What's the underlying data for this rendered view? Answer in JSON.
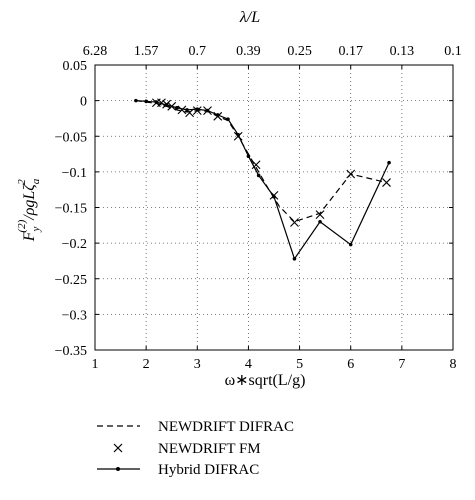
{
  "chart_data": {
    "type": "line",
    "xlabel": "ω∗sqrt(L/g)",
    "ylabel_main": "F",
    "ylabel_sub": "y",
    "ylabel_sup": "(2)",
    "ylabel_denom": "/ρgLζ",
    "ylabel_denom_sub": "a",
    "ylabel_denom_sup": "2",
    "top_axis_label": "λ/L",
    "xlim": [
      1,
      8
    ],
    "ylim": [
      -0.35,
      0.05
    ],
    "x_ticks": [
      1,
      2,
      3,
      4,
      5,
      6,
      7,
      8
    ],
    "y_ticks": [
      0.05,
      0,
      -0.05,
      -0.1,
      -0.15,
      -0.2,
      -0.25,
      -0.3,
      -0.35
    ],
    "y_tick_labels": [
      "0.05",
      "0",
      "−0.05",
      "−0.1",
      "−0.15",
      "−0.2",
      "−0.25",
      "−0.3",
      "−0.35"
    ],
    "top_ticks": [
      {
        "x": 1.0,
        "label": "6.28"
      },
      {
        "x": 2.0,
        "label": "1.57"
      },
      {
        "x": 3.0,
        "label": "0.7"
      },
      {
        "x": 4.0,
        "label": "0.39"
      },
      {
        "x": 5.0,
        "label": "0.25"
      },
      {
        "x": 6.0,
        "label": "0.17"
      },
      {
        "x": 7.0,
        "label": "0.13"
      },
      {
        "x": 8.0,
        "label": "0.1"
      }
    ],
    "grid": true,
    "series": [
      {
        "name": "NEWDRIFT DIFRAC",
        "style": "dashed",
        "x": [
          1.8,
          2.0,
          2.2,
          2.4,
          2.6,
          2.8,
          3.0,
          3.2,
          3.4,
          3.6,
          3.8,
          4.0,
          4.2,
          4.4,
          4.6,
          4.9,
          5.4,
          6.0,
          6.7
        ],
        "y": [
          0.0,
          -0.002,
          -0.004,
          -0.008,
          -0.013,
          -0.016,
          -0.014,
          -0.015,
          -0.022,
          -0.028,
          -0.05,
          -0.075,
          -0.1,
          -0.125,
          -0.148,
          -0.17,
          -0.158,
          -0.103,
          -0.115
        ]
      },
      {
        "name": "NEWDRIFT FM",
        "style": "markers-x",
        "x": [
          2.2,
          2.3,
          2.4,
          2.5,
          2.7,
          2.85,
          3.0,
          3.2,
          3.4,
          3.8,
          4.15,
          4.5,
          4.9,
          5.4,
          6.0,
          6.7
        ],
        "y": [
          -0.003,
          -0.003,
          -0.005,
          -0.008,
          -0.013,
          -0.017,
          -0.014,
          -0.014,
          -0.022,
          -0.05,
          -0.09,
          -0.133,
          -0.171,
          -0.16,
          -0.103,
          -0.115
        ]
      },
      {
        "name": "Hybrid DIFRAC",
        "style": "solid-dots",
        "x": [
          1.8,
          2.0,
          2.2,
          2.4,
          2.6,
          2.8,
          3.0,
          3.2,
          3.4,
          3.6,
          3.8,
          4.0,
          4.2,
          4.5,
          4.9,
          5.4,
          6.0,
          6.75
        ],
        "y": [
          0.0,
          -0.001,
          -0.002,
          -0.006,
          -0.01,
          -0.013,
          -0.012,
          -0.014,
          -0.02,
          -0.026,
          -0.048,
          -0.078,
          -0.105,
          -0.135,
          -0.222,
          -0.17,
          -0.202,
          -0.087
        ]
      }
    ],
    "legend_position": "bottom"
  }
}
